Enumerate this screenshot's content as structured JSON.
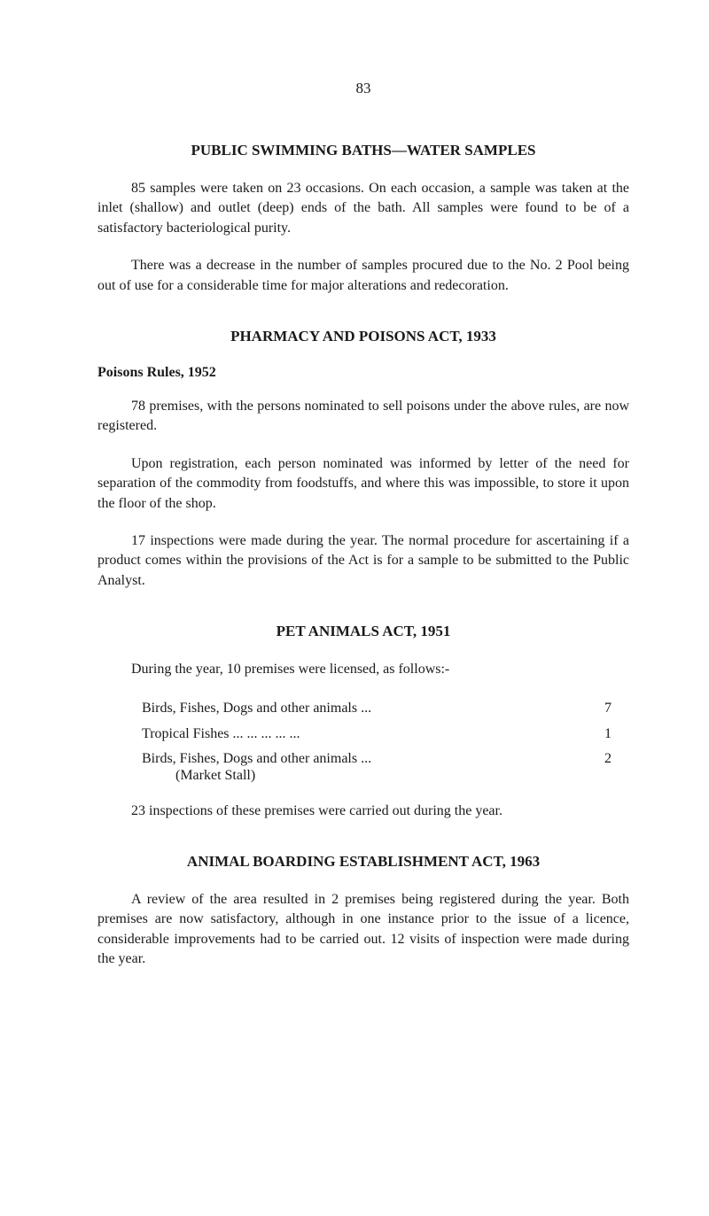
{
  "page_number": "83",
  "sections": {
    "swimming_baths": {
      "title": "PUBLIC SWIMMING BATHS—WATER SAMPLES",
      "para1": "85 samples were taken on 23 occasions. On each occasion, a sample was taken at the inlet (shallow) and outlet (deep) ends of the bath. All samples were found to be of a satisfactory bacteriological purity.",
      "para2": "There was a decrease in the number of samples procured due to the No. 2 Pool being out of use for a considerable time for major alterations and redecoration."
    },
    "pharmacy": {
      "title": "PHARMACY AND POISONS ACT, 1933",
      "subheading": "Poisons Rules, 1952",
      "para1": "78 premises, with the persons nominated to sell poisons under the above rules, are now registered.",
      "para2": "Upon registration, each person nominated was informed by letter of the need for separation of the commodity from foodstuffs, and where this was impossible, to store it upon the floor of the shop.",
      "para3": "17 inspections were made during the year. The normal procedure for ascertaining if a product comes within the provisions of the Act is for a sample to be submitted to the Public Analyst."
    },
    "pet_animals": {
      "title": "PET ANIMALS ACT, 1951",
      "intro": "During the year, 10 premises were licensed, as follows:-",
      "items": [
        {
          "label": "Birds, Fishes, Dogs and other animals ...",
          "value": "7"
        },
        {
          "label": "Tropical Fishes   ...   ...   ...   ...   ...",
          "value": "1"
        },
        {
          "label": "Birds, Fishes, Dogs and other animals ...",
          "value": "2"
        }
      ],
      "item3_sublabel": "(Market Stall)",
      "closing": "23 inspections of these premises were carried out during the year."
    },
    "animal_boarding": {
      "title": "ANIMAL BOARDING ESTABLISHMENT ACT, 1963",
      "para1": "A review of the area resulted in 2 premises being registered during the year. Both premises are now satisfactory, although in one instance prior to the issue of a licence, considerable improvements had to be carried out. 12 visits of inspection were made during the year."
    }
  }
}
